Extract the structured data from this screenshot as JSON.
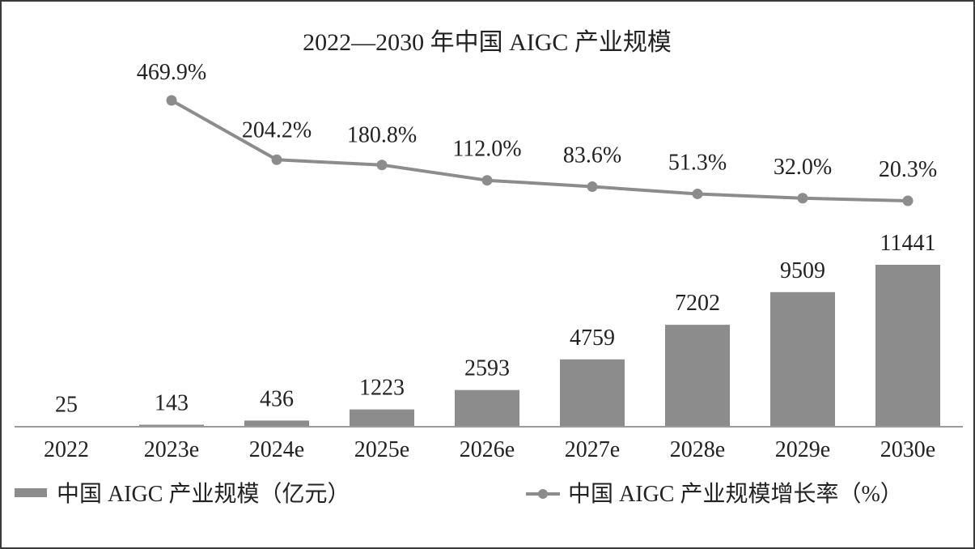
{
  "chart_data": {
    "type": "bar",
    "title": "2022—2030 年中国 AIGC 产业规模",
    "categories": [
      "2022",
      "2023e",
      "2024e",
      "2025e",
      "2026e",
      "2027e",
      "2028e",
      "2029e",
      "2030e"
    ],
    "series": [
      {
        "name": "中国 AIGC 产业规模（亿元）",
        "type": "bar",
        "values": [
          25,
          143,
          436,
          1223,
          2593,
          4759,
          7202,
          9509,
          11441
        ],
        "labels": [
          "25",
          "143",
          "436",
          "1223",
          "2593",
          "4759",
          "7202",
          "9509",
          "11441"
        ],
        "color": "#8c8c8c"
      },
      {
        "name": "中国 AIGC 产业规模增长率（%）",
        "type": "line",
        "values": [
          null,
          469.9,
          204.2,
          180.8,
          112.0,
          83.6,
          51.3,
          32.0,
          20.3
        ],
        "labels": [
          "",
          "469.9%",
          "204.2%",
          "180.8%",
          "112.0%",
          "83.6%",
          "51.3%",
          "32.0%",
          "20.3%"
        ],
        "color": "#8c8c8c"
      }
    ],
    "bar_ylim": [
      0,
      11441
    ],
    "line_ylim": [
      0,
      469.9
    ],
    "grid": false,
    "legend_position": "bottom"
  }
}
